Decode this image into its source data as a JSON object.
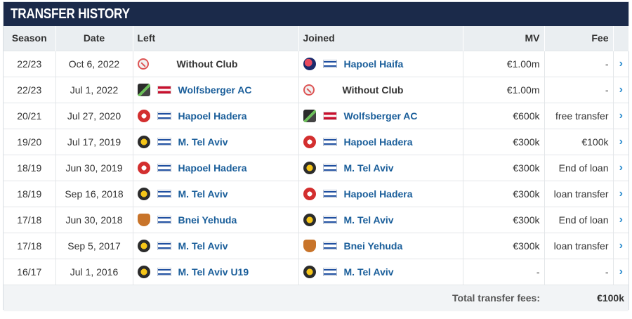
{
  "section": {
    "title": "TRANSFER HISTORY"
  },
  "columns": {
    "season": "Season",
    "date": "Date",
    "left": "Left",
    "joined": "Joined",
    "mv": "MV",
    "fee": "Fee"
  },
  "rows": [
    {
      "season": "22/23",
      "date": "Oct 6, 2022",
      "left": {
        "name": "Without Club",
        "crest": "no-club",
        "flag": ""
      },
      "joined": {
        "name": "Hapoel Haifa",
        "crest": "hapoel-haifa",
        "flag": "israel"
      },
      "mv": "€1.00m",
      "fee": "-"
    },
    {
      "season": "22/23",
      "date": "Jul 1, 2022",
      "left": {
        "name": "Wolfsberger AC",
        "crest": "wolfsberger",
        "flag": "austria"
      },
      "joined": {
        "name": "Without Club",
        "crest": "no-club",
        "flag": ""
      },
      "mv": "€1.00m",
      "fee": "-"
    },
    {
      "season": "20/21",
      "date": "Jul 27, 2020",
      "left": {
        "name": "Hapoel Hadera",
        "crest": "hapoel-hadera",
        "flag": "israel"
      },
      "joined": {
        "name": "Wolfsberger AC",
        "crest": "wolfsberger",
        "flag": "austria"
      },
      "mv": "€600k",
      "fee": "free transfer"
    },
    {
      "season": "19/20",
      "date": "Jul 17, 2019",
      "left": {
        "name": "M. Tel Aviv",
        "crest": "maccabi",
        "flag": "israel"
      },
      "joined": {
        "name": "Hapoel Hadera",
        "crest": "hapoel-hadera",
        "flag": "israel"
      },
      "mv": "€300k",
      "fee": "€100k"
    },
    {
      "season": "18/19",
      "date": "Jun 30, 2019",
      "left": {
        "name": "Hapoel Hadera",
        "crest": "hapoel-hadera",
        "flag": "israel"
      },
      "joined": {
        "name": "M. Tel Aviv",
        "crest": "maccabi",
        "flag": "israel"
      },
      "mv": "€300k",
      "fee": "End of loan"
    },
    {
      "season": "18/19",
      "date": "Sep 16, 2018",
      "left": {
        "name": "M. Tel Aviv",
        "crest": "maccabi",
        "flag": "israel"
      },
      "joined": {
        "name": "Hapoel Hadera",
        "crest": "hapoel-hadera",
        "flag": "israel"
      },
      "mv": "€300k",
      "fee": "loan transfer"
    },
    {
      "season": "17/18",
      "date": "Jun 30, 2018",
      "left": {
        "name": "Bnei Yehuda",
        "crest": "bnei-yehuda",
        "flag": "israel"
      },
      "joined": {
        "name": "M. Tel Aviv",
        "crest": "maccabi",
        "flag": "israel"
      },
      "mv": "€300k",
      "fee": "End of loan"
    },
    {
      "season": "17/18",
      "date": "Sep 5, 2017",
      "left": {
        "name": "M. Tel Aviv",
        "crest": "maccabi",
        "flag": "israel"
      },
      "joined": {
        "name": "Bnei Yehuda",
        "crest": "bnei-yehuda",
        "flag": "israel"
      },
      "mv": "€300k",
      "fee": "loan transfer"
    },
    {
      "season": "16/17",
      "date": "Jul 1, 2016",
      "left": {
        "name": "M. Tel Aviv U19",
        "crest": "maccabi",
        "flag": "israel"
      },
      "joined": {
        "name": "M. Tel Aviv",
        "crest": "maccabi",
        "flag": "israel"
      },
      "mv": "-",
      "fee": "-"
    }
  ],
  "totals": {
    "label": "Total transfer fees:",
    "value": "€100k"
  },
  "icons": {
    "row_arrow": "chevron-right-icon"
  },
  "colors": {
    "header_bg": "#1b2a4a",
    "link": "#1a5e9a",
    "arrow": "#2b8ccf"
  }
}
